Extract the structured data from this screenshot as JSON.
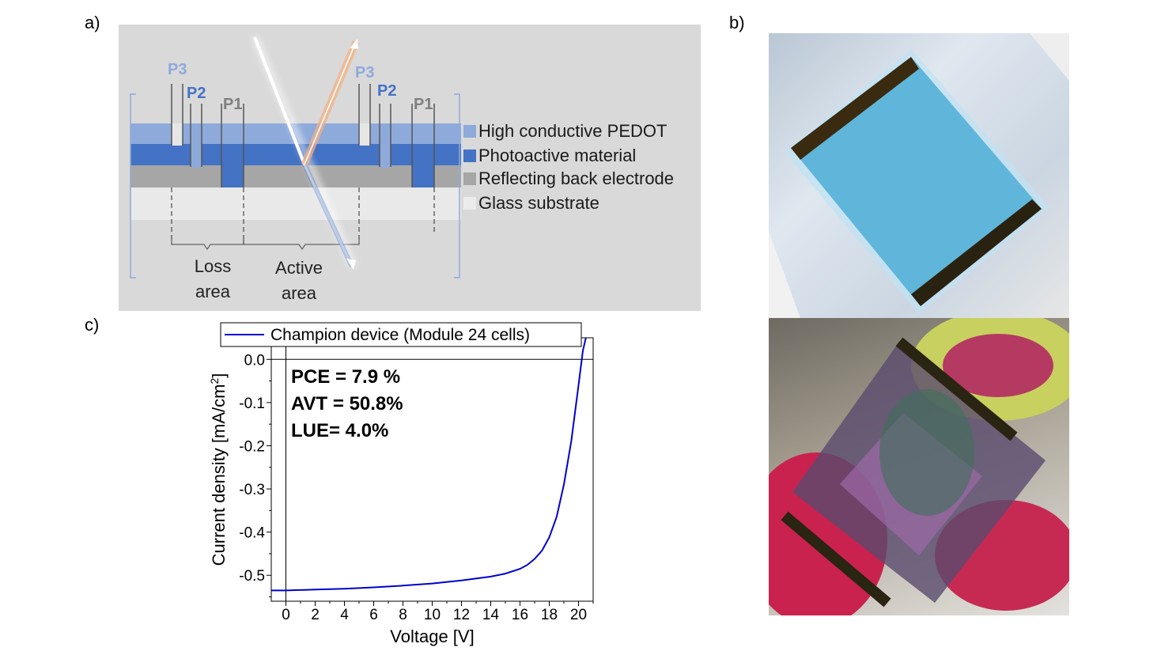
{
  "panels": {
    "a": "a)",
    "b": "b)",
    "c": "c)"
  },
  "schematic": {
    "scribe_labels": {
      "p3_left": "P3",
      "p2_left": "P2",
      "p1_left": "P1",
      "p3_right": "P3",
      "p2_right": "P2",
      "p1_right": "P1"
    },
    "legend": [
      {
        "label": "High conductive PEDOT",
        "color": "#8eaadb"
      },
      {
        "label": "Photoactive material",
        "color": "#4472c4"
      },
      {
        "label": "Reflecting back electrode",
        "color": "#a6a6a6"
      },
      {
        "label": "Glass substrate",
        "color": "#ebebeb"
      }
    ],
    "loss_area": "Loss\narea",
    "active_area": "Active\narea"
  },
  "photos": {
    "top_icon": "module-photo-blue-icon",
    "bottom_icon": "module-photo-plant-icon"
  },
  "chart_data": {
    "type": "line",
    "title": "",
    "xlabel": "Voltage [V]",
    "ylabel": "Current density [mA/cm",
    "ylabel_sup": "2",
    "ylabel_end": "]",
    "xlim": [
      -1,
      21
    ],
    "ylim": [
      -0.56,
      0.05
    ],
    "xticks": [
      0,
      2,
      4,
      6,
      8,
      10,
      12,
      14,
      16,
      18,
      20
    ],
    "yticks": [
      0.0,
      -0.1,
      -0.2,
      -0.3,
      -0.4,
      -0.5
    ],
    "ytick_labels": [
      "0.0",
      "-0.1",
      "-0.2",
      "-0.3",
      "-0.4",
      "-0.5"
    ],
    "legend_position": "top",
    "series": [
      {
        "name": "Champion device (Module 24 cells)",
        "color": "#0000cc",
        "x": [
          -1,
          0,
          2,
          4,
          6,
          8,
          10,
          12,
          14,
          15,
          16,
          16.5,
          17,
          17.5,
          18,
          18.5,
          19,
          19.5,
          20,
          20.3,
          20.5
        ],
        "y": [
          -0.535,
          -0.535,
          -0.533,
          -0.531,
          -0.528,
          -0.524,
          -0.519,
          -0.512,
          -0.503,
          -0.496,
          -0.485,
          -0.476,
          -0.462,
          -0.443,
          -0.412,
          -0.365,
          -0.29,
          -0.19,
          -0.06,
          0.02,
          0.05
        ]
      }
    ],
    "annotations": [
      "PCE = 7.9 %",
      "AVT = 50.8%",
      "LUE= 4.0%"
    ]
  }
}
